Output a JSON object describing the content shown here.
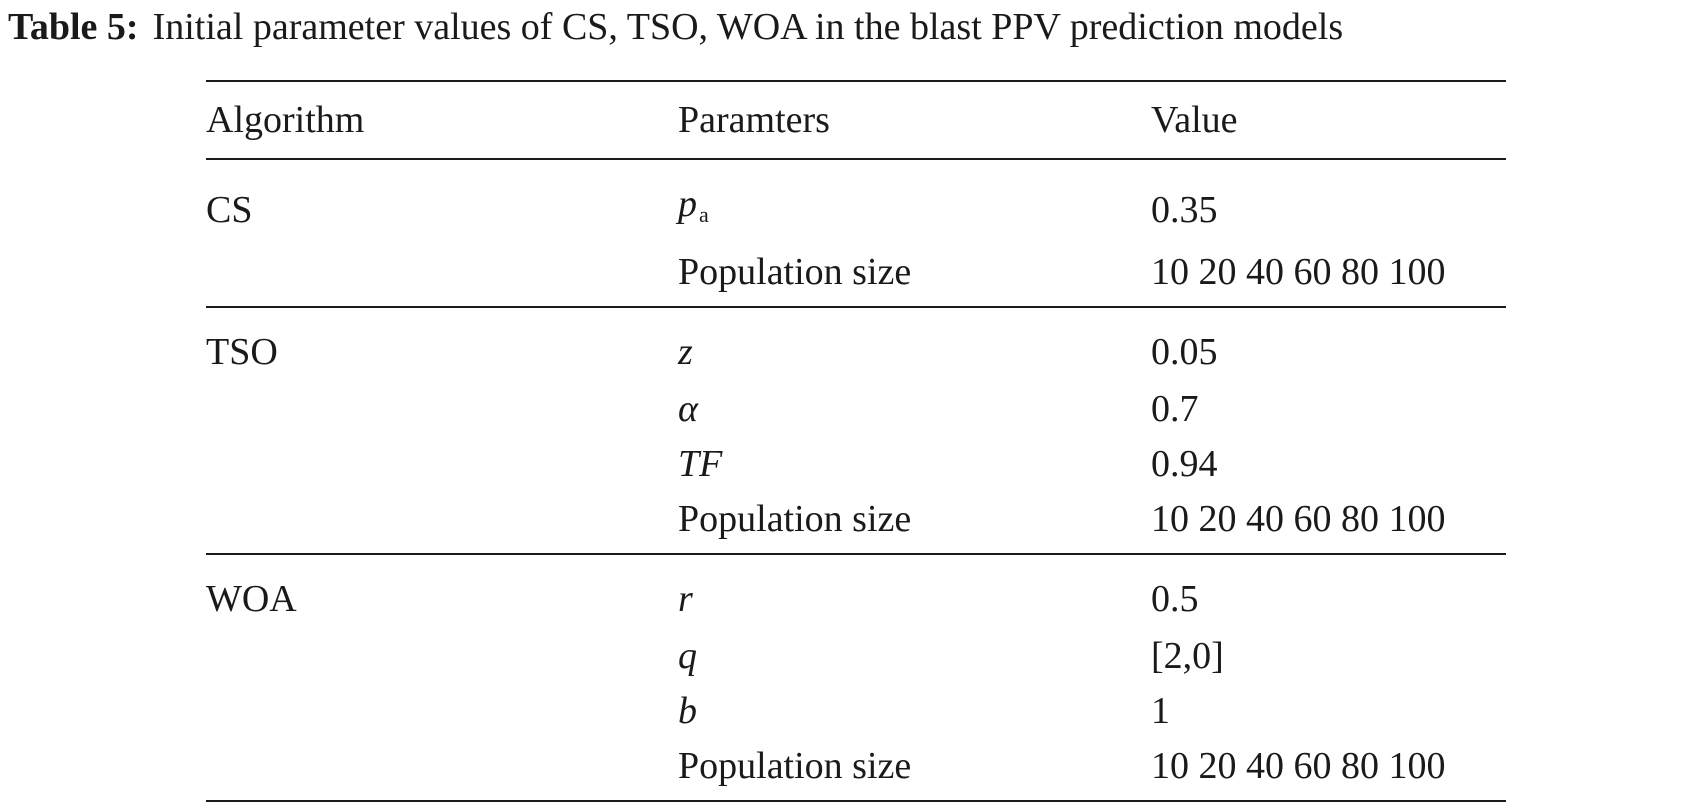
{
  "caption": {
    "label": "Table 5:",
    "text": "Initial parameter values of CS, TSO, WOA in the blast PPV prediction models"
  },
  "table": {
    "headers": [
      "Algorithm",
      "Paramters",
      "Value"
    ],
    "groups": [
      {
        "algorithm": "CS",
        "rows": [
          {
            "param": "p",
            "param_sub": "a",
            "value": "0.35"
          },
          {
            "param": "Population size",
            "value": "10 20 40 60 80 100"
          }
        ]
      },
      {
        "algorithm": "TSO",
        "rows": [
          {
            "param": "z",
            "value": "0.05"
          },
          {
            "param": "α",
            "value": "0.7"
          },
          {
            "param": "TF",
            "value": "0.94"
          },
          {
            "param": "Population size",
            "value": "10 20 40 60 80 100"
          }
        ]
      },
      {
        "algorithm": "WOA",
        "rows": [
          {
            "param": "r",
            "value": "0.5"
          },
          {
            "param": "q",
            "value": "[2,0]"
          },
          {
            "param": "b",
            "value": "1"
          },
          {
            "param": "Population size",
            "value": "10 20 40 60 80 100"
          }
        ]
      }
    ]
  }
}
